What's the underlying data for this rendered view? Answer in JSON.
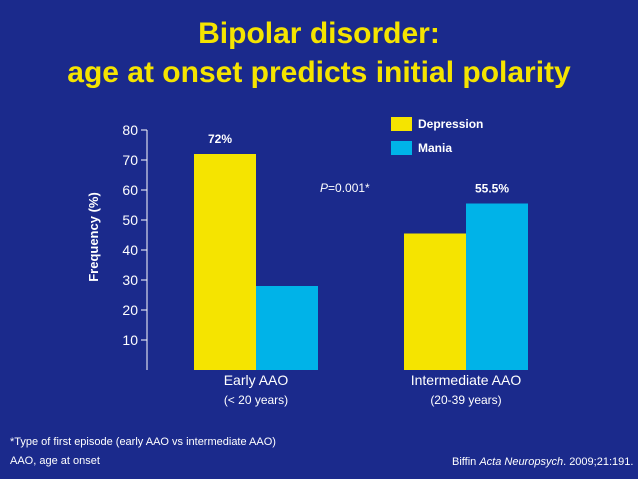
{
  "title": {
    "line1": "Bipolar disorder:",
    "line2": "age at onset predicts initial polarity"
  },
  "chart_data": {
    "type": "bar",
    "ylabel": "Frequency (%)",
    "ylim": [
      0,
      80
    ],
    "yticks": [
      10,
      20,
      30,
      40,
      50,
      60,
      70,
      80
    ],
    "categories": [
      {
        "label": "Early AAO",
        "sublabel": "(< 20 years)"
      },
      {
        "label": "Intermediate AAO",
        "sublabel": "(20-39 years)"
      }
    ],
    "series": [
      {
        "name": "Depression",
        "color": "#f5e400",
        "values": [
          72,
          45.5
        ],
        "data_labels": [
          "72%",
          ""
        ]
      },
      {
        "name": "Mania",
        "color": "#00b3e8",
        "values": [
          28,
          55.5
        ],
        "data_labels": [
          "",
          "55.5%"
        ]
      }
    ],
    "annotation": {
      "prefix": "P",
      "text": "=0.001*"
    },
    "legend_position": "top-right",
    "grid": false
  },
  "footnotes": {
    "note1": "*Type of first episode (early AAO vs intermediate AAO)",
    "note2": "AAO, age at onset",
    "citation_author": "Biffin ",
    "citation_journal": "Acta Neuropsych",
    "citation_rest": ". 2009;21:191."
  }
}
